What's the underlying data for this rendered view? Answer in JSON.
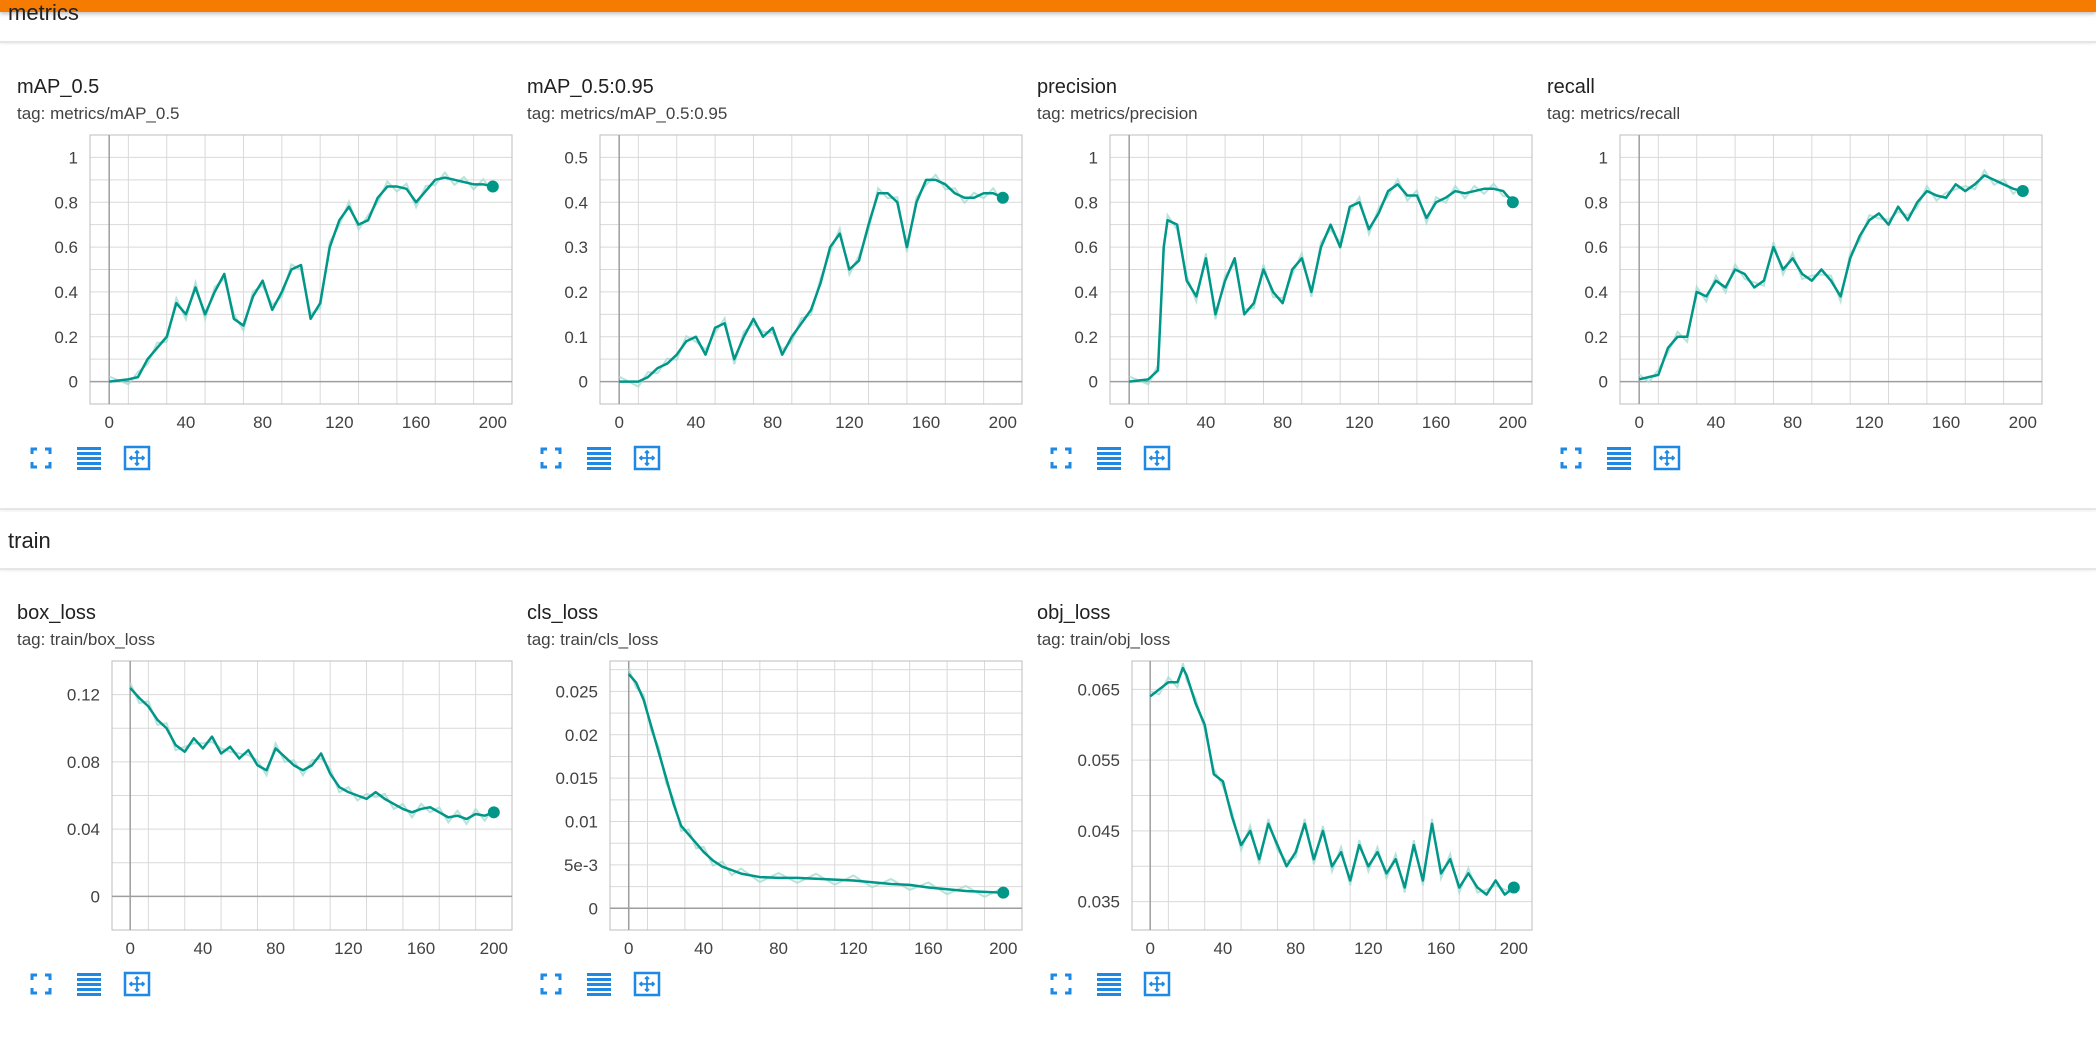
{
  "sections": [
    {
      "title": "metrics"
    },
    {
      "title": "train"
    }
  ],
  "colors": {
    "accent": "#f57c00",
    "line": "#009688",
    "smooth_raw": "#a6dcd2",
    "icon": "#1e88e5"
  },
  "icons": [
    "fullscreen-icon",
    "data-table-icon",
    "fit-domain-icon"
  ],
  "cards": [
    {
      "title": "mAP_0.5",
      "tag": "tag: metrics/mAP_0.5",
      "chart_data": {
        "type": "line",
        "xlim": [
          -10,
          210
        ],
        "ylim": [
          -0.1,
          1.1
        ],
        "xticks": [
          "0",
          "40",
          "80",
          "120",
          "160",
          "200"
        ],
        "yticks": [
          "0",
          "0.2",
          "0.4",
          "0.6",
          "0.8",
          "1"
        ],
        "x": [
          0,
          10,
          15,
          20,
          25,
          30,
          35,
          40,
          45,
          50,
          55,
          60,
          65,
          70,
          75,
          80,
          85,
          90,
          95,
          100,
          105,
          110,
          115,
          120,
          125,
          130,
          135,
          140,
          145,
          150,
          155,
          160,
          165,
          170,
          175,
          180,
          185,
          190,
          195,
          200
        ],
        "y": [
          0,
          0.01,
          0.02,
          0.1,
          0.15,
          0.2,
          0.35,
          0.3,
          0.42,
          0.3,
          0.4,
          0.48,
          0.28,
          0.25,
          0.38,
          0.45,
          0.32,
          0.4,
          0.5,
          0.52,
          0.28,
          0.35,
          0.6,
          0.72,
          0.78,
          0.7,
          0.72,
          0.82,
          0.87,
          0.87,
          0.86,
          0.8,
          0.85,
          0.9,
          0.91,
          0.9,
          0.89,
          0.88,
          0.88,
          0.87
        ]
      }
    },
    {
      "title": "mAP_0.5:0.95",
      "tag": "tag: metrics/mAP_0.5:0.95",
      "chart_data": {
        "type": "line",
        "xlim": [
          -10,
          210
        ],
        "ylim": [
          -0.05,
          0.55
        ],
        "xticks": [
          "0",
          "40",
          "80",
          "120",
          "160",
          "200"
        ],
        "yticks": [
          "0",
          "0.1",
          "0.2",
          "0.3",
          "0.4",
          "0.5"
        ],
        "x": [
          0,
          10,
          15,
          20,
          25,
          30,
          35,
          40,
          45,
          50,
          55,
          60,
          65,
          70,
          75,
          80,
          85,
          90,
          95,
          100,
          105,
          110,
          115,
          120,
          125,
          130,
          135,
          140,
          145,
          150,
          155,
          160,
          165,
          170,
          175,
          180,
          185,
          190,
          195,
          200
        ],
        "y": [
          0,
          0,
          0.01,
          0.03,
          0.04,
          0.06,
          0.09,
          0.1,
          0.06,
          0.12,
          0.13,
          0.05,
          0.1,
          0.14,
          0.1,
          0.12,
          0.06,
          0.1,
          0.13,
          0.16,
          0.22,
          0.3,
          0.33,
          0.25,
          0.27,
          0.35,
          0.42,
          0.42,
          0.4,
          0.3,
          0.4,
          0.45,
          0.45,
          0.44,
          0.42,
          0.41,
          0.41,
          0.42,
          0.42,
          0.41
        ]
      }
    },
    {
      "title": "precision",
      "tag": "tag: metrics/precision",
      "chart_data": {
        "type": "line",
        "xlim": [
          -10,
          210
        ],
        "ylim": [
          -0.1,
          1.1
        ],
        "xticks": [
          "0",
          "40",
          "80",
          "120",
          "160",
          "200"
        ],
        "yticks": [
          "0",
          "0.2",
          "0.4",
          "0.6",
          "0.8",
          "1"
        ],
        "x": [
          0,
          10,
          15,
          18,
          20,
          25,
          30,
          35,
          40,
          45,
          50,
          55,
          60,
          65,
          70,
          75,
          80,
          85,
          90,
          95,
          100,
          105,
          110,
          115,
          120,
          125,
          130,
          135,
          140,
          145,
          150,
          155,
          160,
          165,
          170,
          175,
          180,
          185,
          190,
          195,
          200
        ],
        "y": [
          0,
          0.01,
          0.05,
          0.6,
          0.72,
          0.7,
          0.45,
          0.38,
          0.55,
          0.3,
          0.45,
          0.55,
          0.3,
          0.35,
          0.5,
          0.4,
          0.35,
          0.5,
          0.55,
          0.4,
          0.6,
          0.7,
          0.6,
          0.78,
          0.8,
          0.68,
          0.75,
          0.85,
          0.88,
          0.83,
          0.83,
          0.73,
          0.8,
          0.82,
          0.85,
          0.84,
          0.85,
          0.86,
          0.86,
          0.85,
          0.8
        ]
      }
    },
    {
      "title": "recall",
      "tag": "tag: metrics/recall",
      "chart_data": {
        "type": "line",
        "xlim": [
          -10,
          210
        ],
        "ylim": [
          -0.1,
          1.1
        ],
        "xticks": [
          "0",
          "40",
          "80",
          "120",
          "160",
          "200"
        ],
        "yticks": [
          "0",
          "0.2",
          "0.4",
          "0.6",
          "0.8",
          "1"
        ],
        "x": [
          0,
          5,
          10,
          15,
          20,
          25,
          30,
          35,
          40,
          45,
          50,
          55,
          60,
          65,
          70,
          75,
          80,
          85,
          90,
          95,
          100,
          105,
          110,
          115,
          120,
          125,
          130,
          135,
          140,
          145,
          150,
          155,
          160,
          165,
          170,
          175,
          180,
          185,
          190,
          195,
          200
        ],
        "y": [
          0.01,
          0.02,
          0.03,
          0.15,
          0.2,
          0.2,
          0.4,
          0.38,
          0.45,
          0.42,
          0.5,
          0.48,
          0.42,
          0.45,
          0.6,
          0.5,
          0.55,
          0.48,
          0.45,
          0.5,
          0.45,
          0.38,
          0.55,
          0.65,
          0.72,
          0.75,
          0.7,
          0.78,
          0.72,
          0.8,
          0.85,
          0.83,
          0.82,
          0.88,
          0.85,
          0.88,
          0.92,
          0.9,
          0.88,
          0.86,
          0.85
        ]
      }
    },
    {
      "title": "box_loss",
      "tag": "tag: train/box_loss",
      "chart_data": {
        "type": "line",
        "xlim": [
          -10,
          210
        ],
        "ylim": [
          -0.02,
          0.14
        ],
        "xticks": [
          "0",
          "40",
          "80",
          "120",
          "160",
          "200"
        ],
        "yticks": [
          "0",
          "0.04",
          "0.08",
          "0.12"
        ],
        "x": [
          0,
          5,
          10,
          15,
          20,
          25,
          30,
          35,
          40,
          45,
          50,
          55,
          60,
          65,
          70,
          75,
          80,
          85,
          90,
          95,
          100,
          105,
          110,
          115,
          120,
          125,
          130,
          135,
          140,
          145,
          150,
          155,
          160,
          165,
          170,
          175,
          180,
          185,
          190,
          195,
          200
        ],
        "y": [
          0.124,
          0.118,
          0.113,
          0.105,
          0.1,
          0.09,
          0.086,
          0.094,
          0.088,
          0.095,
          0.085,
          0.089,
          0.082,
          0.087,
          0.078,
          0.075,
          0.088,
          0.083,
          0.078,
          0.075,
          0.078,
          0.085,
          0.073,
          0.065,
          0.062,
          0.06,
          0.058,
          0.062,
          0.058,
          0.055,
          0.052,
          0.05,
          0.052,
          0.053,
          0.05,
          0.047,
          0.048,
          0.046,
          0.049,
          0.048,
          0.05
        ]
      }
    },
    {
      "title": "cls_loss",
      "tag": "tag: train/cls_loss",
      "chart_data": {
        "type": "line",
        "xlim": [
          -10,
          210
        ],
        "ylim": [
          -0.0025,
          0.0285
        ],
        "xticks": [
          "0",
          "40",
          "80",
          "120",
          "160",
          "200"
        ],
        "yticks": [
          "0",
          "5e-3",
          "0.01",
          "0.015",
          "0.02",
          "0.025"
        ],
        "x": [
          0,
          4,
          8,
          12,
          16,
          20,
          24,
          28,
          32,
          36,
          40,
          45,
          50,
          55,
          60,
          70,
          80,
          90,
          100,
          110,
          120,
          130,
          140,
          150,
          160,
          170,
          180,
          190,
          200
        ],
        "y": [
          0.027,
          0.026,
          0.024,
          0.021,
          0.018,
          0.015,
          0.012,
          0.0095,
          0.0085,
          0.0075,
          0.0065,
          0.0055,
          0.0048,
          0.0044,
          0.004,
          0.0036,
          0.0035,
          0.0035,
          0.0034,
          0.0033,
          0.0032,
          0.003,
          0.0028,
          0.0027,
          0.0024,
          0.0022,
          0.002,
          0.0019,
          0.0018
        ]
      }
    },
    {
      "title": "obj_loss",
      "tag": "tag: train/obj_loss",
      "chart_data": {
        "type": "line",
        "xlim": [
          -10,
          210
        ],
        "ylim": [
          0.031,
          0.069
        ],
        "xticks": [
          "0",
          "40",
          "80",
          "120",
          "160",
          "200"
        ],
        "yticks": [
          "0.035",
          "0.045",
          "0.055",
          "0.065"
        ],
        "x": [
          0,
          5,
          10,
          15,
          18,
          20,
          25,
          30,
          35,
          40,
          45,
          50,
          55,
          60,
          65,
          70,
          75,
          80,
          85,
          90,
          95,
          100,
          105,
          110,
          115,
          120,
          125,
          130,
          135,
          140,
          145,
          150,
          155,
          160,
          165,
          170,
          175,
          180,
          185,
          190,
          195,
          200
        ],
        "y": [
          0.064,
          0.065,
          0.066,
          0.066,
          0.068,
          0.067,
          0.063,
          0.06,
          0.053,
          0.052,
          0.047,
          0.043,
          0.045,
          0.041,
          0.046,
          0.043,
          0.04,
          0.042,
          0.046,
          0.041,
          0.045,
          0.04,
          0.042,
          0.038,
          0.043,
          0.04,
          0.042,
          0.039,
          0.041,
          0.037,
          0.043,
          0.038,
          0.046,
          0.039,
          0.041,
          0.037,
          0.039,
          0.037,
          0.036,
          0.038,
          0.036,
          0.037
        ]
      }
    }
  ]
}
